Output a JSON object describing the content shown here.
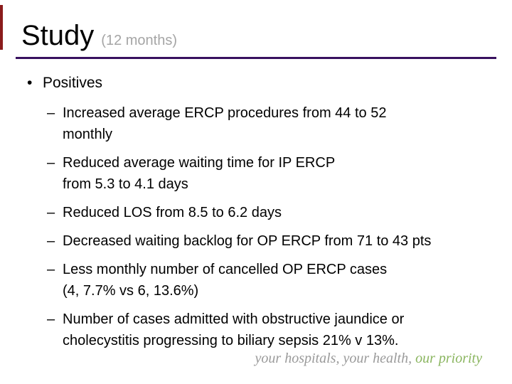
{
  "slide": {
    "title": "Study",
    "title_suffix": "(12 months)",
    "markers": {
      "level1_bullet": "•",
      "level2_dash": "–"
    },
    "bullet_heading": "Positives",
    "sub_bullets": [
      "Increased average ERCP procedures from 44 to 52\nmonthly",
      "Reduced average waiting time for IP ERCP\nfrom 5.3 to 4.1 days",
      "Reduced LOS from 8.5 to 6.2 days",
      "Decreased waiting backlog for OP ERCP from 71 to 43 pts",
      "Less monthly number of cancelled OP ERCP cases\n(4, 7.7% vs 6, 13.6%)",
      "Number of cases admitted with obstructive jaundice or\ncholecystitis progressing to biliary sepsis 21% v 13%."
    ],
    "footer": {
      "gray_text": "your hospitals, your health, ",
      "green_text": "our priority"
    },
    "colors": {
      "corner_bar_red": "#8b1c1c",
      "title_rule_purple": "#38115f",
      "title_suffix_gray": "#a5a5a5",
      "footer_gray": "#9a9a9a",
      "footer_green": "#8ab55f"
    }
  }
}
